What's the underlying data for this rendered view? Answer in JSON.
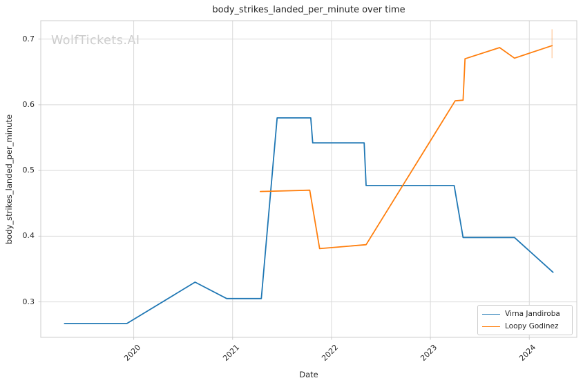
{
  "watermark": "WolfTickets.AI",
  "chart_data": {
    "type": "line",
    "title": "body_strikes_landed_per_minute over time",
    "xlabel": "Date",
    "ylabel": "body_strikes_landed_per_minute",
    "x_tick_labels": [
      "2020",
      "2021",
      "2022",
      "2023",
      "2024"
    ],
    "x_ticks": [
      2020,
      2021,
      2022,
      2023,
      2024
    ],
    "y_tick_labels": [
      "0.3",
      "0.4",
      "0.5",
      "0.6",
      "0.7"
    ],
    "y_ticks": [
      0.3,
      0.4,
      0.5,
      0.6,
      0.7
    ],
    "xlim": [
      2019.06,
      2024.48
    ],
    "ylim": [
      0.246,
      0.728
    ],
    "grid": true,
    "legend_position": "lower right",
    "colors": {
      "grid": "#d9d9d9",
      "spine": "#cccccc",
      "tick": "#cccccc",
      "text": "#262626",
      "watermark": "#cccccc"
    },
    "series": [
      {
        "name": "Virna Jandiroba",
        "color": "#1f77b4",
        "x": [
          2019.3,
          2019.93,
          2020.62,
          2020.94,
          2021.29,
          2021.45,
          2021.79,
          2021.81,
          2022.33,
          2022.35,
          2023.24,
          2023.33,
          2023.85,
          2024.24
        ],
        "y": [
          0.267,
          0.267,
          0.33,
          0.305,
          0.305,
          0.58,
          0.58,
          0.542,
          0.542,
          0.477,
          0.477,
          0.398,
          0.398,
          0.345
        ]
      },
      {
        "name": "Loopy Godinez",
        "color": "#ff7f0e",
        "x": [
          2021.28,
          2021.78,
          2021.88,
          2022.35,
          2023.25,
          2023.33,
          2023.35,
          2023.7,
          2023.85,
          2024.23
        ],
        "y": [
          0.468,
          0.47,
          0.381,
          0.387,
          0.606,
          0.607,
          0.67,
          0.687,
          0.671,
          0.69
        ],
        "end_error_bar": {
          "x": 2024.23,
          "y_min": 0.671,
          "y_max": 0.715
        }
      }
    ]
  }
}
